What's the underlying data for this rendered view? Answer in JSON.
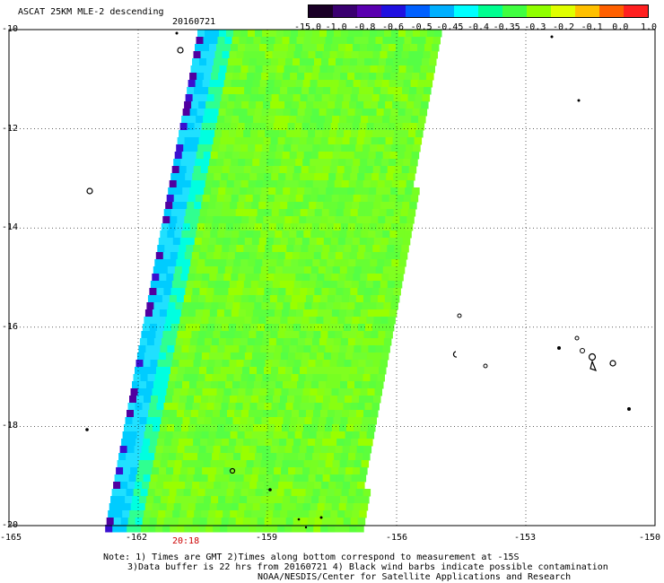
{
  "title": "ASCAT 25KM MLE-2 descending",
  "date": "20160721",
  "colorbar": {
    "labels": [
      "-15.0",
      "-1.0",
      "-0.8",
      "-0.6",
      "-0.5",
      "-0.45",
      "-0.4",
      "-0.35",
      "-0.3",
      "-0.2",
      "-0.1",
      "0.0",
      "1.0"
    ],
    "colors": [
      "#1a0026",
      "#3a0070",
      "#5a00b0",
      "#2010e0",
      "#0060ff",
      "#00b0ff",
      "#00ffff",
      "#00ff90",
      "#40ff40",
      "#90ff00",
      "#e0ff00",
      "#ffc000",
      "#ff6000",
      "#ff2020"
    ]
  },
  "map": {
    "lat_labels": [
      "-10",
      "-12",
      "-14",
      "-16",
      "-18",
      "-20"
    ],
    "lon_labels": [
      "-165",
      "-162",
      "-159",
      "-156",
      "-153",
      "-150"
    ],
    "lat_range": [
      -20,
      -10
    ],
    "lon_range": [
      -165,
      -150
    ]
  },
  "time_label": "20:18",
  "notes": [
    "Note: 1) Times are GMT 2)Times along bottom correspond to measurement at -15S",
    "3)Data buffer is 22 hrs from 20160721 4) Black wind barbs indicate possible contamination",
    "NOAA/NESDIS/Center for Satellite Applications and Research"
  ]
}
